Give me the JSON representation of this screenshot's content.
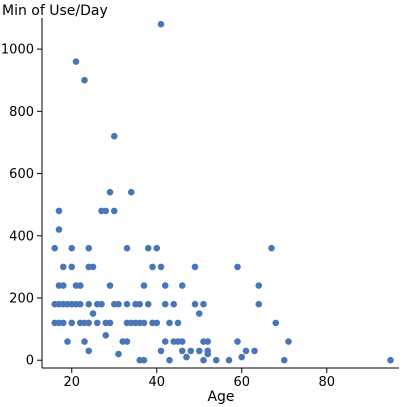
{
  "chart_data": {
    "type": "scatter",
    "title": "",
    "xlabel": "Age",
    "ylabel": "Min of Use/Day",
    "xlim": [
      13,
      97
    ],
    "ylim": [
      -25,
      1100
    ],
    "xticks": [
      20,
      40,
      60,
      80
    ],
    "yticks": [
      0,
      200,
      400,
      600,
      800,
      1000
    ],
    "grid": false,
    "legend": "none",
    "colors": {
      "point": "#4a76b8",
      "axis": "#000000"
    },
    "series": [
      {
        "points": [
          [
            16,
            360
          ],
          [
            16,
            180
          ],
          [
            16,
            120
          ],
          [
            17,
            480
          ],
          [
            17,
            420
          ],
          [
            17,
            240
          ],
          [
            17,
            180
          ],
          [
            17,
            120
          ],
          [
            18,
            300
          ],
          [
            18,
            240
          ],
          [
            18,
            180
          ],
          [
            18,
            120
          ],
          [
            19,
            180
          ],
          [
            19,
            60
          ],
          [
            20,
            360
          ],
          [
            20,
            300
          ],
          [
            20,
            180
          ],
          [
            20,
            120
          ],
          [
            21,
            960
          ],
          [
            21,
            240
          ],
          [
            21,
            180
          ],
          [
            22,
            240
          ],
          [
            22,
            180
          ],
          [
            22,
            120
          ],
          [
            23,
            900
          ],
          [
            23,
            120
          ],
          [
            23,
            60
          ],
          [
            24,
            360
          ],
          [
            24,
            300
          ],
          [
            24,
            180
          ],
          [
            24,
            120
          ],
          [
            24,
            30
          ],
          [
            25,
            300
          ],
          [
            25,
            150
          ],
          [
            26,
            180
          ],
          [
            26,
            120
          ],
          [
            27,
            480
          ],
          [
            27,
            180
          ],
          [
            28,
            480
          ],
          [
            28,
            120
          ],
          [
            28,
            80
          ],
          [
            29,
            540
          ],
          [
            29,
            240
          ],
          [
            29,
            120
          ],
          [
            30,
            720
          ],
          [
            30,
            480
          ],
          [
            30,
            180
          ],
          [
            31,
            180
          ],
          [
            31,
            20
          ],
          [
            32,
            60
          ],
          [
            33,
            360
          ],
          [
            33,
            180
          ],
          [
            33,
            120
          ],
          [
            33,
            60
          ],
          [
            34,
            540
          ],
          [
            34,
            120
          ],
          [
            35,
            180
          ],
          [
            35,
            120
          ],
          [
            36,
            180
          ],
          [
            36,
            120
          ],
          [
            36,
            0
          ],
          [
            37,
            240
          ],
          [
            37,
            120
          ],
          [
            37,
            0
          ],
          [
            38,
            360
          ],
          [
            38,
            180
          ],
          [
            39,
            300
          ],
          [
            39,
            120
          ],
          [
            40,
            360
          ],
          [
            40,
            120
          ],
          [
            41,
            1080
          ],
          [
            41,
            300
          ],
          [
            41,
            30
          ],
          [
            42,
            240
          ],
          [
            42,
            180
          ],
          [
            42,
            60
          ],
          [
            43,
            120
          ],
          [
            43,
            0
          ],
          [
            44,
            180
          ],
          [
            44,
            60
          ],
          [
            45,
            120
          ],
          [
            45,
            60
          ],
          [
            46,
            240
          ],
          [
            46,
            60
          ],
          [
            46,
            30
          ],
          [
            47,
            10
          ],
          [
            48,
            30
          ],
          [
            49,
            300
          ],
          [
            49,
            180
          ],
          [
            50,
            150
          ],
          [
            50,
            30
          ],
          [
            51,
            180
          ],
          [
            51,
            60
          ],
          [
            51,
            0
          ],
          [
            52,
            60
          ],
          [
            52,
            30
          ],
          [
            52,
            20
          ],
          [
            54,
            0
          ],
          [
            57,
            0
          ],
          [
            59,
            300
          ],
          [
            59,
            60
          ],
          [
            60,
            10
          ],
          [
            61,
            30
          ],
          [
            63,
            30
          ],
          [
            64,
            240
          ],
          [
            64,
            180
          ],
          [
            67,
            360
          ],
          [
            68,
            120
          ],
          [
            70,
            0
          ],
          [
            71,
            60
          ],
          [
            95,
            0
          ]
        ]
      }
    ]
  }
}
